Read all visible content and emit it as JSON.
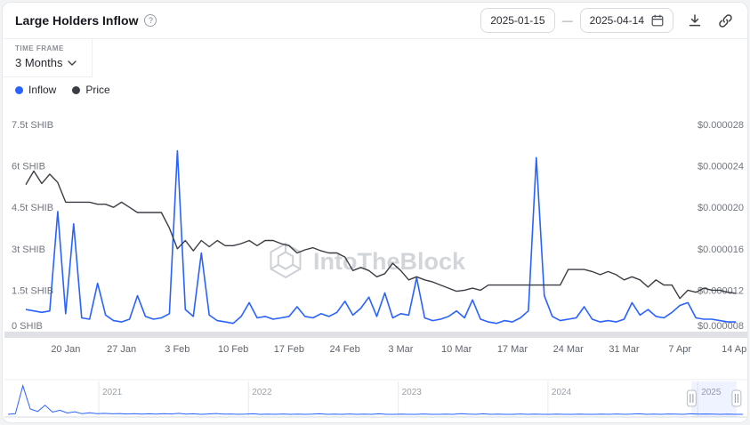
{
  "header": {
    "title": "Large Holders Inflow",
    "date_start": "2025-01-15",
    "date_separator": "—",
    "date_end": "2025-04-14"
  },
  "controls": {
    "time_frame_label": "TIME FRAME",
    "time_frame_value": "3 Months"
  },
  "legend": [
    {
      "label": "Inflow",
      "color": "#2962ff"
    },
    {
      "label": "Price",
      "color": "#3a3d43"
    }
  ],
  "watermark": {
    "text": "IntoTheBlock"
  },
  "navigator": {
    "years": [
      "2021",
      "2022",
      "2023",
      "2024",
      "2025"
    ],
    "selection_start": "2025-01-15",
    "selection_end": "2025-04-14",
    "spark": [
      0.3,
      0.5,
      9.5,
      2.0,
      1.2,
      3.2,
      1.0,
      1.6,
      0.7,
      1.1,
      0.5,
      0.8,
      0.5,
      0.6,
      0.45,
      0.55,
      0.4,
      0.5,
      0.35,
      0.45,
      0.35,
      0.5,
      0.4,
      0.6,
      0.35,
      0.45,
      0.3,
      0.4,
      0.55,
      0.35,
      0.4,
      0.3,
      0.35,
      0.45,
      0.3,
      0.35,
      0.3,
      0.4,
      0.3,
      0.35,
      0.3,
      0.35,
      0.45,
      0.3,
      0.35,
      0.3,
      0.4,
      0.3,
      0.35,
      0.3,
      0.45,
      0.3,
      0.3,
      0.35,
      0.3,
      0.3,
      0.4,
      0.3,
      0.3,
      0.35,
      0.3,
      0.5,
      0.35,
      0.3,
      0.45,
      0.3,
      0.35,
      0.3,
      0.3,
      0.4,
      0.3,
      0.35,
      0.3,
      0.3,
      0.35,
      0.3,
      0.3,
      0.35,
      0.3,
      0.3,
      0.35,
      0.3,
      0.4,
      0.3,
      0.35,
      0.45,
      0.3,
      0.35,
      0.3,
      0.4,
      0.35,
      0.3,
      0.45,
      0.35,
      0.4,
      0.35,
      0.3,
      0.35,
      0.3,
      0.3
    ]
  },
  "chart_data": {
    "type": "line",
    "title": "Large Holders Inflow",
    "x": [
      "2025-01-15",
      "2025-01-16",
      "2025-01-17",
      "2025-01-18",
      "2025-01-19",
      "2025-01-20",
      "2025-01-21",
      "2025-01-22",
      "2025-01-23",
      "2025-01-24",
      "2025-01-25",
      "2025-01-26",
      "2025-01-27",
      "2025-01-28",
      "2025-01-29",
      "2025-01-30",
      "2025-01-31",
      "2025-02-01",
      "2025-02-02",
      "2025-02-03",
      "2025-02-04",
      "2025-02-05",
      "2025-02-06",
      "2025-02-07",
      "2025-02-08",
      "2025-02-09",
      "2025-02-10",
      "2025-02-11",
      "2025-02-12",
      "2025-02-13",
      "2025-02-14",
      "2025-02-15",
      "2025-02-16",
      "2025-02-17",
      "2025-02-18",
      "2025-02-19",
      "2025-02-20",
      "2025-02-21",
      "2025-02-22",
      "2025-02-23",
      "2025-02-24",
      "2025-02-25",
      "2025-02-26",
      "2025-02-27",
      "2025-02-28",
      "2025-03-01",
      "2025-03-02",
      "2025-03-03",
      "2025-03-04",
      "2025-03-05",
      "2025-03-06",
      "2025-03-07",
      "2025-03-08",
      "2025-03-09",
      "2025-03-10",
      "2025-03-11",
      "2025-03-12",
      "2025-03-13",
      "2025-03-14",
      "2025-03-15",
      "2025-03-16",
      "2025-03-17",
      "2025-03-18",
      "2025-03-19",
      "2025-03-20",
      "2025-03-21",
      "2025-03-22",
      "2025-03-23",
      "2025-03-24",
      "2025-03-25",
      "2025-03-26",
      "2025-03-27",
      "2025-03-28",
      "2025-03-29",
      "2025-03-30",
      "2025-03-31",
      "2025-04-01",
      "2025-04-02",
      "2025-04-03",
      "2025-04-04",
      "2025-04-05",
      "2025-04-06",
      "2025-04-07",
      "2025-04-08",
      "2025-04-09",
      "2025-04-10",
      "2025-04-11",
      "2025-04-12",
      "2025-04-13",
      "2025-04-14"
    ],
    "series": [
      {
        "name": "Inflow",
        "axis": "left",
        "unit": "trillion SHIB",
        "color": "#2962ff",
        "values": [
          0.8,
          0.75,
          0.7,
          0.75,
          4.35,
          0.65,
          3.9,
          0.5,
          0.45,
          1.75,
          0.6,
          0.4,
          0.35,
          0.45,
          1.3,
          0.55,
          0.45,
          0.5,
          0.65,
          6.55,
          0.8,
          0.55,
          2.85,
          0.6,
          0.4,
          0.35,
          0.3,
          0.55,
          1.05,
          0.5,
          0.55,
          0.45,
          0.5,
          0.55,
          0.9,
          0.55,
          0.5,
          0.65,
          0.55,
          0.7,
          1.1,
          0.6,
          0.85,
          1.25,
          0.55,
          1.4,
          0.5,
          0.65,
          0.6,
          1.95,
          0.5,
          0.4,
          0.45,
          0.55,
          0.75,
          0.5,
          1.15,
          0.45,
          0.35,
          0.3,
          0.4,
          0.35,
          0.5,
          0.75,
          6.3,
          1.3,
          0.55,
          0.4,
          0.45,
          0.5,
          0.9,
          0.45,
          0.35,
          0.4,
          0.35,
          0.45,
          1.05,
          0.6,
          0.8,
          0.55,
          0.5,
          0.7,
          0.95,
          1.05,
          0.5,
          0.45,
          0.45,
          0.4,
          0.35,
          0.35
        ]
      },
      {
        "name": "Price",
        "axis": "right",
        "unit": "USD",
        "color": "#3a3d43",
        "values": [
          2.22e-05,
          2.35e-05,
          2.23e-05,
          2.32e-05,
          2.24e-05,
          2.05e-05,
          2.05e-05,
          2.05e-05,
          2.05e-05,
          2.03e-05,
          2.03e-05,
          2e-05,
          2.05e-05,
          2e-05,
          1.95e-05,
          1.95e-05,
          1.95e-05,
          1.95e-05,
          1.8e-05,
          1.6e-05,
          1.68e-05,
          1.58e-05,
          1.68e-05,
          1.62e-05,
          1.68e-05,
          1.63e-05,
          1.63e-05,
          1.65e-05,
          1.68e-05,
          1.63e-05,
          1.68e-05,
          1.68e-05,
          1.65e-05,
          1.63e-05,
          1.56e-05,
          1.59e-05,
          1.61e-05,
          1.58e-05,
          1.56e-05,
          1.56e-05,
          1.52e-05,
          1.39e-05,
          1.42e-05,
          1.39e-05,
          1.33e-05,
          1.36e-05,
          1.46e-05,
          1.39e-05,
          1.3e-05,
          1.33e-05,
          1.3e-05,
          1.28e-05,
          1.25e-05,
          1.22e-05,
          1.19e-05,
          1.2e-05,
          1.22e-05,
          1.2e-05,
          1.25e-05,
          1.25e-05,
          1.25e-05,
          1.25e-05,
          1.25e-05,
          1.25e-05,
          1.25e-05,
          1.25e-05,
          1.25e-05,
          1.25e-05,
          1.4e-05,
          1.4e-05,
          1.4e-05,
          1.38e-05,
          1.35e-05,
          1.38e-05,
          1.35e-05,
          1.3e-05,
          1.33e-05,
          1.3e-05,
          1.23e-05,
          1.3e-05,
          1.25e-05,
          1.25e-05,
          1.12e-05,
          1.2e-05,
          1.18e-05,
          1.22e-05,
          1.2e-05,
          1.2e-05,
          1.18e-05,
          1.17e-05
        ]
      }
    ],
    "left_axis": {
      "min": 0,
      "max": 7.5,
      "unit": "SHIB",
      "ticks": [
        {
          "v": 0,
          "label": "0 SHIB"
        },
        {
          "v": 1.5,
          "label": "1.5t SHIB"
        },
        {
          "v": 3,
          "label": "3t SHIB"
        },
        {
          "v": 4.5,
          "label": "4.5t SHIB"
        },
        {
          "v": 6,
          "label": "6t SHIB"
        },
        {
          "v": 7.5,
          "label": "7.5t SHIB"
        }
      ]
    },
    "right_axis": {
      "min": 8e-06,
      "max": 2.8e-05,
      "unit": "USD",
      "ticks": [
        {
          "v": 8e-06,
          "label": "$0.000008"
        },
        {
          "v": 1.2e-05,
          "label": "$0.000012"
        },
        {
          "v": 1.6e-05,
          "label": "$0.000016"
        },
        {
          "v": 2e-05,
          "label": "$0.000020"
        },
        {
          "v": 2.4e-05,
          "label": "$0.000024"
        },
        {
          "v": 2.8e-05,
          "label": "$0.000028"
        }
      ]
    },
    "x_ticks": [
      {
        "date": "2025-01-20",
        "label": "20 Jan"
      },
      {
        "date": "2025-01-27",
        "label": "27 Jan"
      },
      {
        "date": "2025-02-03",
        "label": "3 Feb"
      },
      {
        "date": "2025-02-10",
        "label": "10 Feb"
      },
      {
        "date": "2025-02-17",
        "label": "17 Feb"
      },
      {
        "date": "2025-02-24",
        "label": "24 Feb"
      },
      {
        "date": "2025-03-03",
        "label": "3 Mar"
      },
      {
        "date": "2025-03-10",
        "label": "10 Mar"
      },
      {
        "date": "2025-03-17",
        "label": "17 Mar"
      },
      {
        "date": "2025-03-24",
        "label": "24 Mar"
      },
      {
        "date": "2025-03-31",
        "label": "31 Mar"
      },
      {
        "date": "2025-04-07",
        "label": "7 Apr"
      },
      {
        "date": "2025-04-14",
        "label": "14 Apr"
      }
    ],
    "legend_position": "top-left",
    "grid": false
  }
}
